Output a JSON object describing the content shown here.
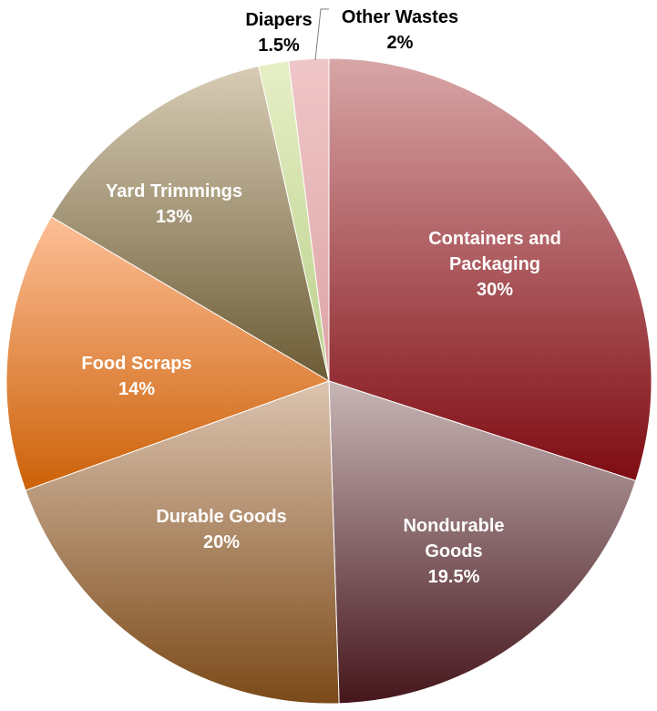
{
  "chart_data": {
    "type": "pie",
    "title": "",
    "start_angle_deg": 0,
    "direction": "clockwise",
    "slices": [
      {
        "label": "Containers and Packaging",
        "label_lines": [
          "Containers and",
          "Packaging",
          "30%"
        ],
        "value": 30,
        "value_text": "30%",
        "color_top": "#d8a6a7",
        "color_bottom": "#7e0b12",
        "label_color": "light"
      },
      {
        "label": "Nondurable Goods",
        "label_lines": [
          "Nondurable",
          "Goods",
          "19.5%"
        ],
        "value": 19.5,
        "value_text": "19.5%",
        "color_top": "#c8b6b6",
        "color_bottom": "#45161c",
        "label_color": "light"
      },
      {
        "label": "Durable Goods",
        "label_lines": [
          "Durable Goods",
          "20%"
        ],
        "value": 20,
        "value_text": "20%",
        "color_top": "#dcc4b0",
        "color_bottom": "#7b4a19",
        "label_color": "light"
      },
      {
        "label": "Food Scraps",
        "label_lines": [
          "Food Scraps",
          "14%"
        ],
        "value": 14,
        "value_text": "14%",
        "color_top": "#fdbf97",
        "color_bottom": "#cc6108",
        "label_color": "light"
      },
      {
        "label": "Yard Trimmings",
        "label_lines": [
          "Yard Trimmings",
          "13%"
        ],
        "value": 13,
        "value_text": "13%",
        "color_top": "#d8ccb5",
        "color_bottom": "#6b5b35",
        "label_color": "light"
      },
      {
        "label": "Diapers",
        "label_lines": [
          "Diapers",
          "1.5%"
        ],
        "value": 1.5,
        "value_text": "1.5%",
        "color_top": "#e7efc6",
        "color_bottom": "#b9d08a",
        "label_color": "dark"
      },
      {
        "label": "Other Wastes",
        "label_lines": [
          "Other Wastes",
          "2%"
        ],
        "value": 2,
        "value_text": "2%",
        "color_top": "#efc6c7",
        "color_bottom": "#dda4a6",
        "label_color": "dark"
      }
    ]
  }
}
